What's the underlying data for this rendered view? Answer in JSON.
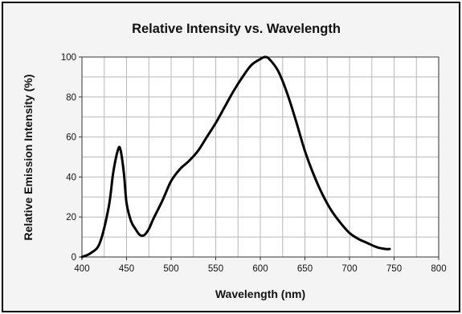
{
  "chart_data": {
    "type": "line",
    "title": "Relative Intensity vs. Wavelength",
    "xlabel": "Wavelength (nm)",
    "ylabel": "Relative Emission Intensity (%)",
    "xlim": [
      400,
      800
    ],
    "ylim": [
      0,
      100
    ],
    "xticks": [
      400,
      450,
      500,
      550,
      600,
      650,
      700,
      750,
      800
    ],
    "yticks": [
      0,
      20,
      40,
      60,
      80,
      100
    ],
    "xtick_labels": [
      "400",
      "450",
      "500",
      "550",
      "600",
      "650",
      "700",
      "750",
      "800"
    ],
    "ytick_labels": [
      "0",
      "20",
      "40",
      "60",
      "80",
      "100"
    ],
    "grid": true,
    "legend": "none",
    "series": [
      {
        "color": "#000000",
        "x": [
          400,
          410,
          420,
          430,
          435,
          440,
          443,
          447,
          450,
          455,
          460,
          465,
          470,
          475,
          480,
          490,
          500,
          510,
          520,
          530,
          540,
          550,
          560,
          570,
          580,
          590,
          600,
          605,
          610,
          620,
          630,
          640,
          650,
          660,
          670,
          680,
          690,
          700,
          710,
          720,
          730,
          740,
          745
        ],
        "y": [
          0,
          2,
          7,
          25,
          42,
          53,
          54,
          42,
          27,
          18,
          14,
          11,
          11,
          14,
          19,
          28,
          38,
          44,
          48,
          53,
          60,
          67,
          75,
          83,
          90,
          96,
          99,
          100,
          99,
          93,
          82,
          68,
          53,
          41,
          31,
          23,
          17,
          12,
          9,
          7,
          5,
          4,
          4
        ]
      }
    ]
  }
}
